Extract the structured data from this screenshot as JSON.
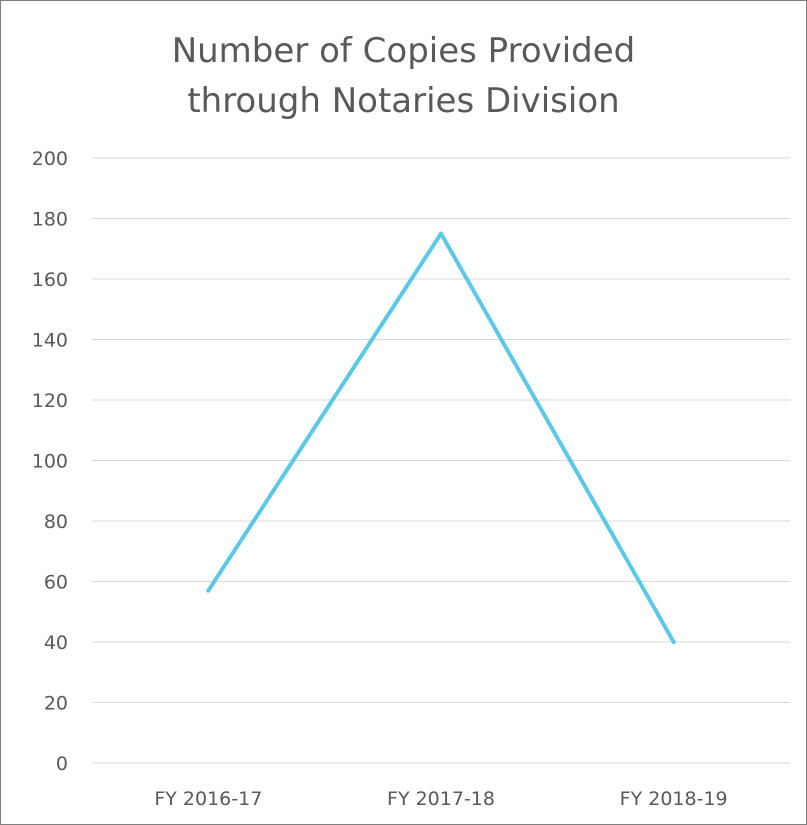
{
  "chart_data": {
    "type": "line",
    "title_lines": [
      "Number of Copies Provided",
      "through Notaries Division"
    ],
    "categories": [
      "FY 2016-17",
      "FY 2017-18",
      "FY 2018-19"
    ],
    "series": [
      {
        "values": [
          57,
          175,
          40
        ],
        "color": "#5bc8e8"
      }
    ],
    "ylim": [
      0,
      200
    ],
    "y_ticks": [
      0,
      20,
      40,
      60,
      80,
      100,
      120,
      140,
      160,
      180,
      200
    ],
    "grid": true,
    "legend": "none",
    "colors": {
      "grid": "#d9d9d9",
      "text": "#595959",
      "border": "#7f7f7f"
    }
  }
}
